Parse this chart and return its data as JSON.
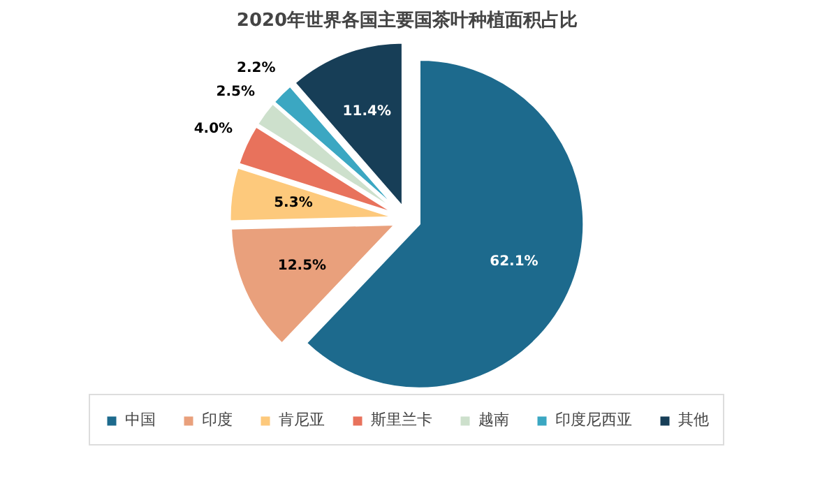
{
  "chart_data": {
    "type": "pie",
    "title": "2020年世界各国主要国茶叶种植面积占比",
    "categories": [
      "中国",
      "印度",
      "肯尼亚",
      "斯里兰卡",
      "越南",
      "印度尼西亚",
      "其他"
    ],
    "values": [
      62.1,
      12.5,
      5.3,
      4.0,
      2.5,
      2.2,
      11.4
    ],
    "colors": [
      "#1d6a8d",
      "#e9a07c",
      "#fdc97c",
      "#e8725c",
      "#cde0cc",
      "#3ba7c2",
      "#173e57"
    ],
    "value_labels": [
      "62.1%",
      "12.5%",
      "5.3%",
      "4.0%",
      "2.5%",
      "2.2%",
      "11.4%"
    ],
    "legend": "bottom"
  }
}
